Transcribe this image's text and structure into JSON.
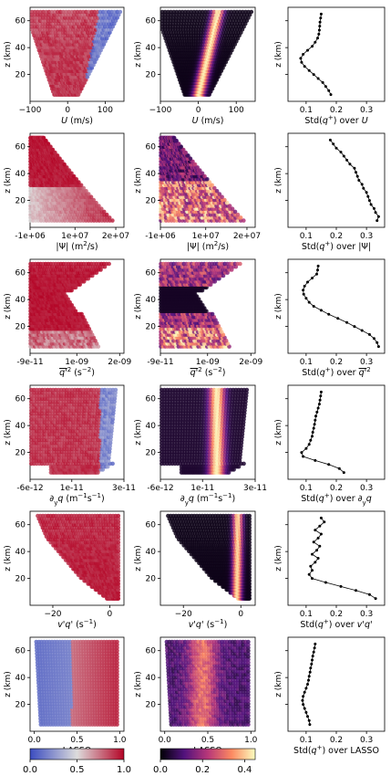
{
  "colorbars": [
    {
      "name": "coolwarm",
      "ticks": [
        "0.0",
        "0.5",
        "1.0"
      ],
      "colors": [
        "#3b4cc0",
        "#dddcdc",
        "#b40426"
      ]
    },
    {
      "name": "magma",
      "ticks": [
        "0.0",
        "0.2",
        "0.4"
      ],
      "colors": [
        "#000004",
        "#51127c",
        "#b73779",
        "#fc8961",
        "#fcfdbf"
      ]
    }
  ],
  "rows": [
    {
      "xlabel": "U (m/s)",
      "xlabel_html": "<tspan font-style='italic'>U</tspan> (m/s)",
      "xticks": [
        "−100",
        "0",
        "100"
      ],
      "xtick_vals": [
        -100,
        0,
        100
      ],
      "xlim": [
        -100,
        150
      ],
      "std_label": "Std(q⁺) over U",
      "std_label_html": "Std(<tspan font-style='italic'>q</tspan><tspan baseline-shift='super' font-size='7'>+</tspan>) over <tspan font-style='italic'>U</tspan>",
      "shape": "linear"
    },
    {
      "xlabel": "|Ψ| (m²/s)",
      "xlabel_html": "|Ψ| (m<tspan baseline-shift='super' font-size='7'>2</tspan>/s)",
      "xticks": [
        "-1e+06",
        "1e+07",
        "2e+07"
      ],
      "xtick_vals": [
        -1000000,
        10000000,
        20000000
      ],
      "xlim": [
        -1000000,
        22000000
      ],
      "std_label": "Std(q⁺) over |Ψ|",
      "std_label_html": "Std(<tspan font-style='italic'>q</tspan><tspan baseline-shift='super' font-size='7'>+</tspan>) over |Ψ|",
      "shape": "psi"
    },
    {
      "xlabel": "q'² (s⁻²)",
      "xlabel_html": "<tspan font-style='italic' text-decoration='overline'>q'</tspan><tspan baseline-shift='super' font-size='7'>2</tspan> (s<tspan baseline-shift='super' font-size='7'>−2</tspan>)",
      "xticks": [
        "-9e-11",
        "1e-09",
        "2e-09"
      ],
      "xtick_vals": [
        -9e-11,
        1e-09,
        2e-09
      ],
      "xlim": [
        -9e-11,
        2.1e-09
      ],
      "std_label": "Std(q⁺) over q'²",
      "std_label_html": "Std(<tspan font-style='italic'>q</tspan><tspan baseline-shift='super' font-size='7'>+</tspan>) over <tspan font-style='italic' text-decoration='overline'>q'</tspan><tspan baseline-shift='super' font-size='7'>2</tspan>",
      "shape": "qvar"
    },
    {
      "xlabel": "∂yq (m⁻¹s⁻¹)",
      "xlabel_html": "∂<tspan baseline-shift='sub' font-size='7'>y</tspan><tspan font-style='italic'>q</tspan> (m<tspan baseline-shift='super' font-size='7'>−1</tspan>s<tspan baseline-shift='super' font-size='7'>−1</tspan>)",
      "xticks": [
        "-6e-12",
        "1e-11",
        "3e-11"
      ],
      "xtick_vals": [
        -6e-12,
        1e-11,
        3e-11
      ],
      "xlim": [
        -6e-12,
        3e-11
      ],
      "std_label": "Std(q⁺) over ∂yq",
      "std_label_html": "Std(<tspan font-style='italic'>q</tspan><tspan baseline-shift='super' font-size='7'>+</tspan>) over ∂<tspan baseline-shift='sub' font-size='7'>y</tspan><tspan font-style='italic'>q</tspan>",
      "shape": "dyq"
    },
    {
      "xlabel": "v'q' (s⁻¹)",
      "xlabel_html": "<tspan font-style='italic'>v'q'</tspan> (s<tspan baseline-shift='super' font-size='7'>−1</tspan>)",
      "xticks": [
        "−20",
        "0"
      ],
      "xtick_vals": [
        -20,
        0
      ],
      "xlim": [
        -28,
        5
      ],
      "std_label": "Std(q⁺) over v'q'",
      "std_label_html": "Std(<tspan font-style='italic'>q</tspan><tspan baseline-shift='super' font-size='7'>+</tspan>) over <tspan font-style='italic'>v'q'</tspan>",
      "shape": "vq"
    },
    {
      "xlabel": "LASSO",
      "xlabel_html": "LASSO",
      "xticks": [
        "0.0",
        "0.5",
        "1.0"
      ],
      "xtick_vals": [
        0,
        0.5,
        1
      ],
      "xlim": [
        -0.05,
        1.05
      ],
      "std_label": "Std(q⁺) over LASSO",
      "std_label_html": "Std(<tspan font-style='italic'>q</tspan><tspan baseline-shift='super' font-size='7'>+</tspan>) over LASSO",
      "shape": "lasso"
    }
  ],
  "ylabel": "z (km)",
  "yticks": [
    "20",
    "40",
    "60"
  ],
  "ytick_vals": [
    20,
    40,
    60
  ],
  "ylim": [
    0,
    70
  ],
  "std_xticks": [
    "0.1",
    "0.2",
    "0.3"
  ],
  "std_xtick_vals": [
    0.1,
    0.2,
    0.3
  ],
  "std_xlim": [
    0.04,
    0.36
  ],
  "chart_data": [
    {
      "type": "line",
      "title": "",
      "xlabel": "Std(q+) over U",
      "ylabel": "z (km)",
      "x": [
        0.15,
        0.148,
        0.146,
        0.145,
        0.144,
        0.142,
        0.138,
        0.13,
        0.12,
        0.105,
        0.09,
        0.082,
        0.085,
        0.095,
        0.11,
        0.125,
        0.14,
        0.155,
        0.165,
        0.175,
        0.182
      ],
      "y": [
        65,
        62,
        59,
        56,
        53,
        50,
        47,
        44,
        41,
        38,
        35,
        32,
        29,
        26,
        23,
        20,
        17,
        14,
        11,
        8,
        5
      ]
    },
    {
      "type": "line",
      "title": "",
      "xlabel": "Std(q+) over |Ψ|",
      "ylabel": "z (km)",
      "x": [
        0.18,
        0.19,
        0.2,
        0.215,
        0.225,
        0.235,
        0.245,
        0.26,
        0.265,
        0.27,
        0.275,
        0.285,
        0.29,
        0.3,
        0.305,
        0.31,
        0.315,
        0.325,
        0.33,
        0.34,
        0.335
      ],
      "y": [
        65,
        62,
        59,
        56,
        53,
        50,
        47,
        44,
        41,
        38,
        35,
        32,
        29,
        26,
        23,
        20,
        17,
        14,
        11,
        8,
        5
      ]
    },
    {
      "type": "line",
      "title": "",
      "xlabel": "Std(q+) over q'2",
      "ylabel": "z (km)",
      "x": [
        0.14,
        0.138,
        0.135,
        0.12,
        0.105,
        0.095,
        0.09,
        0.092,
        0.1,
        0.11,
        0.125,
        0.15,
        0.175,
        0.205,
        0.235,
        0.26,
        0.285,
        0.31,
        0.325,
        0.335,
        0.34
      ],
      "y": [
        65,
        62,
        59,
        56,
        53,
        50,
        47,
        44,
        41,
        38,
        35,
        32,
        29,
        26,
        23,
        20,
        17,
        14,
        11,
        8,
        5
      ]
    },
    {
      "type": "line",
      "title": "",
      "xlabel": "Std(q+) over ∂yq",
      "ylabel": "z (km)",
      "x": [
        0.15,
        0.148,
        0.146,
        0.144,
        0.14,
        0.136,
        0.132,
        0.13,
        0.128,
        0.125,
        0.122,
        0.12,
        0.115,
        0.11,
        0.1,
        0.085,
        0.09,
        0.13,
        0.175,
        0.21,
        0.225
      ],
      "y": [
        65,
        62,
        59,
        56,
        53,
        50,
        47,
        44,
        41,
        38,
        35,
        32,
        29,
        26,
        23,
        20,
        17,
        14,
        11,
        8,
        5
      ]
    },
    {
      "type": "line",
      "title": "",
      "xlabel": "Std(q+) over v'q'",
      "ylabel": "z (km)",
      "x": [
        0.15,
        0.16,
        0.145,
        0.13,
        0.15,
        0.14,
        0.125,
        0.145,
        0.135,
        0.12,
        0.14,
        0.13,
        0.115,
        0.12,
        0.11,
        0.12,
        0.165,
        0.215,
        0.265,
        0.31,
        0.33
      ],
      "y": [
        65,
        62,
        59,
        56,
        53,
        50,
        47,
        44,
        41,
        38,
        35,
        32,
        29,
        26,
        23,
        20,
        17,
        14,
        11,
        8,
        5
      ]
    },
    {
      "type": "line",
      "title": "",
      "xlabel": "Std(q+) over LASSO",
      "ylabel": "z (km)",
      "x": [
        0.13,
        0.128,
        0.125,
        0.122,
        0.12,
        0.118,
        0.115,
        0.113,
        0.11,
        0.108,
        0.105,
        0.1,
        0.095,
        0.09,
        0.088,
        0.09,
        0.095,
        0.1,
        0.105,
        0.11,
        0.112
      ],
      "y": [
        65,
        62,
        59,
        56,
        53,
        50,
        47,
        44,
        41,
        38,
        35,
        32,
        29,
        26,
        23,
        20,
        17,
        14,
        11,
        8,
        5
      ]
    }
  ]
}
